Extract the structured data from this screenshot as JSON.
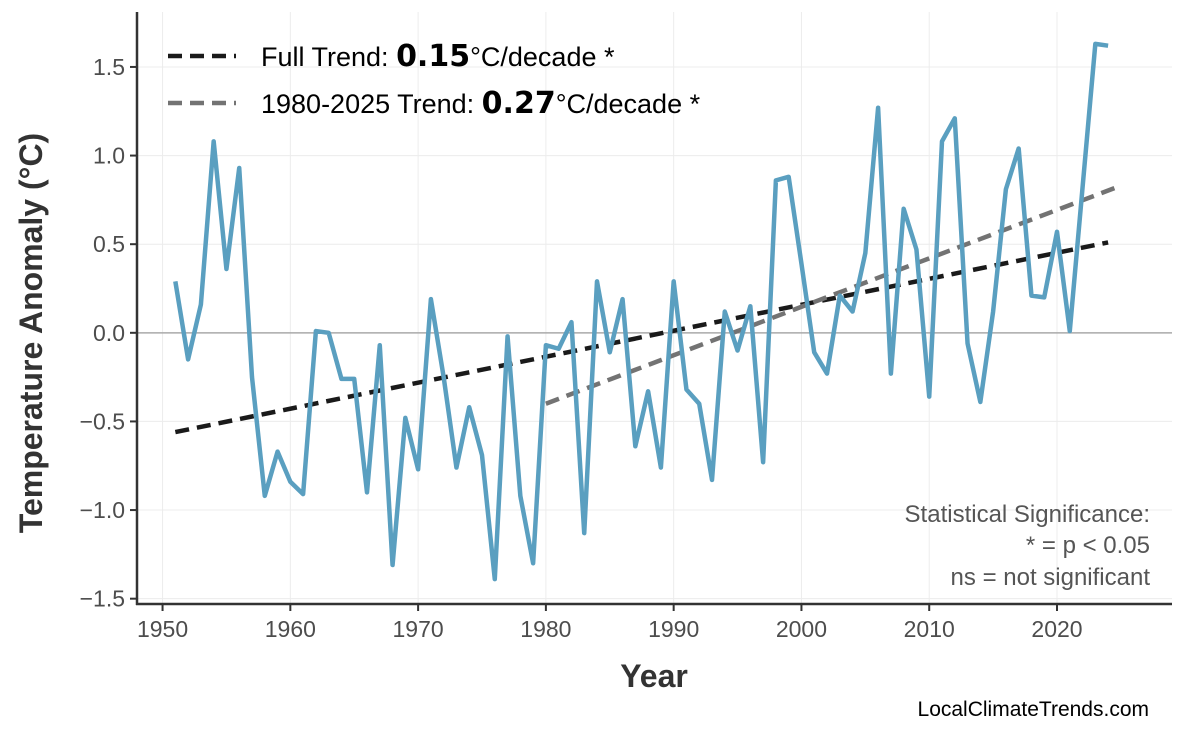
{
  "chart_data": {
    "type": "line",
    "title": "",
    "xlabel": "Year",
    "ylabel": "Temperature Anomaly (°C)",
    "xlim": [
      1948,
      2029
    ],
    "ylim": [
      -1.53,
      1.81
    ],
    "xticks": [
      1950,
      1960,
      1970,
      1980,
      1990,
      2000,
      2010,
      2020
    ],
    "xtick_labels": [
      "1950",
      "1960",
      "1970",
      "1980",
      "1990",
      "2000",
      "2010",
      "2020"
    ],
    "yticks": [
      -1.5,
      -1.0,
      -0.5,
      0.0,
      0.5,
      1.0,
      1.5
    ],
    "ytick_labels": [
      "−1.5",
      "−1.0",
      "−0.5",
      "0.0",
      "0.5",
      "1.0",
      "1.5"
    ],
    "grid": true,
    "zero_line": true,
    "legend_position": "top-left",
    "x": [
      1951,
      1952,
      1953,
      1954,
      1955,
      1956,
      1957,
      1958,
      1959,
      1960,
      1961,
      1962,
      1963,
      1964,
      1965,
      1966,
      1967,
      1968,
      1969,
      1970,
      1971,
      1972,
      1973,
      1974,
      1975,
      1976,
      1977,
      1978,
      1979,
      1980,
      1981,
      1982,
      1983,
      1984,
      1985,
      1986,
      1987,
      1988,
      1989,
      1990,
      1991,
      1992,
      1993,
      1994,
      1995,
      1996,
      1997,
      1998,
      1999,
      2000,
      2001,
      2002,
      2003,
      2004,
      2005,
      2006,
      2007,
      2008,
      2009,
      2010,
      2011,
      2012,
      2013,
      2014,
      2015,
      2016,
      2017,
      2018,
      2019,
      2020,
      2021,
      2022,
      2023,
      2024
    ],
    "series": [
      {
        "color": "#5a9fc0",
        "values": [
          0.29,
          -0.15,
          0.16,
          1.08,
          0.36,
          0.93,
          -0.25,
          -0.92,
          -0.67,
          -0.84,
          -0.91,
          0.01,
          0.0,
          -0.26,
          -0.26,
          -0.9,
          -0.07,
          -1.31,
          -0.48,
          -0.77,
          0.19,
          -0.25,
          -0.76,
          -0.42,
          -0.69,
          -1.39,
          -0.02,
          -0.92,
          -1.3,
          -0.07,
          -0.09,
          0.06,
          -1.13,
          0.29,
          -0.11,
          0.19,
          -0.64,
          -0.33,
          -0.76,
          0.29,
          -0.32,
          -0.4,
          -0.83,
          0.12,
          -0.1,
          0.15,
          -0.73,
          0.86,
          0.88,
          0.39,
          -0.11,
          -0.23,
          0.21,
          0.12,
          0.45,
          1.27,
          -0.23,
          0.7,
          0.47,
          -0.36,
          1.08,
          1.21,
          -0.06,
          -0.39,
          0.12,
          0.81,
          1.04,
          0.21,
          0.2,
          0.57,
          0.01,
          0.82,
          1.63,
          1.62
        ]
      }
    ],
    "trends": [
      {
        "label_prefix": "Full Trend: ",
        "value": "0.15",
        "label_suffix": "°C/decade *",
        "color": "#1a1a1a",
        "x": [
          1951,
          2024
        ],
        "y": [
          -0.56,
          0.51
        ]
      },
      {
        "label_prefix": "1980-2025 Trend: ",
        "value": "0.27",
        "label_suffix": "°C/decade *",
        "color": "#737373",
        "x": [
          1980,
          2025
        ],
        "y": [
          -0.4,
          0.83
        ]
      }
    ],
    "annotation": [
      "Statistical Significance:",
      "* = p < 0.05",
      "ns = not significant"
    ],
    "credit": "LocalClimateTrends.com"
  }
}
